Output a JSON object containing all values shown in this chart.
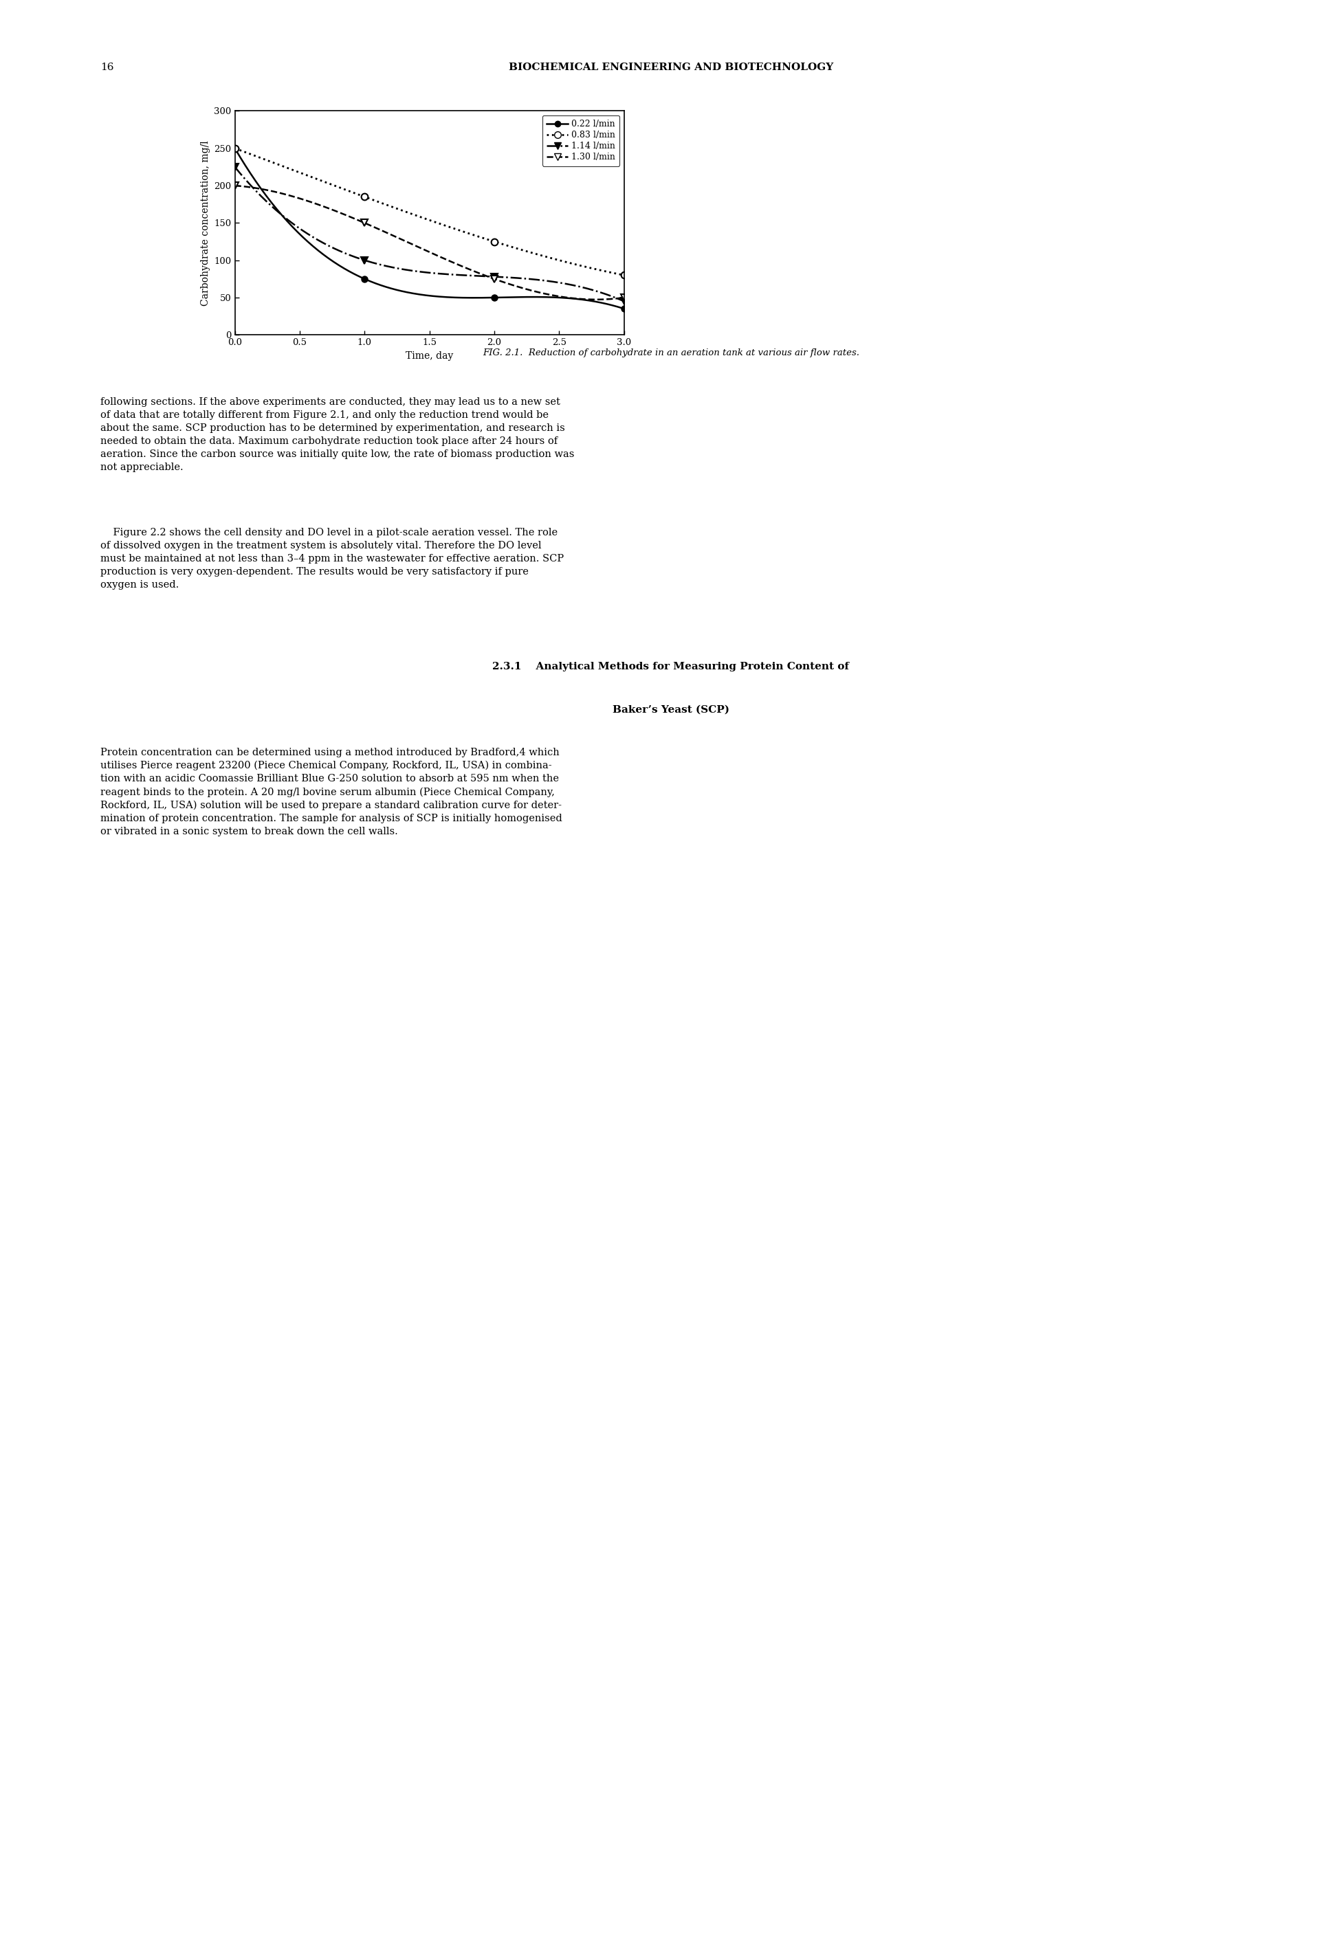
{
  "title_header": "BIOCHEMICAL ENGINEERING AND BIOTECHNOLOGY",
  "page_number": "16",
  "fig_caption": "FIG. 2.1.  Reduction of carbohydrate in an aeration tank at various air flow rates.",
  "xlabel": "Time, day",
  "ylabel": "Carbohydrate concentration, mg/l",
  "xlim": [
    0.0,
    3.0
  ],
  "ylim": [
    0,
    300
  ],
  "xticks": [
    0.0,
    0.5,
    1.0,
    1.5,
    2.0,
    2.5,
    3.0
  ],
  "yticks": [
    0,
    50,
    100,
    150,
    200,
    250,
    300
  ],
  "series": [
    {
      "label": "0.22 l/min",
      "x": [
        0.0,
        1.0,
        2.0,
        3.0
      ],
      "y": [
        250,
        75,
        50,
        35
      ],
      "color": "black",
      "linestyle": "-",
      "marker": "o",
      "markersize": 6,
      "linewidth": 1.8,
      "markerfacecolor": "black"
    },
    {
      "label": "0.83 l/min",
      "x": [
        0.0,
        1.0,
        2.0,
        3.0
      ],
      "y": [
        250,
        185,
        125,
        80
      ],
      "color": "black",
      "linestyle": ":",
      "marker": "o",
      "markersize": 7,
      "linewidth": 2.0,
      "markerfacecolor": "white"
    },
    {
      "label": "1.14 l/min",
      "x": [
        0.0,
        1.0,
        2.0,
        3.0
      ],
      "y": [
        225,
        100,
        78,
        45
      ],
      "color": "black",
      "linestyle": "-.",
      "marker": "v",
      "markersize": 7,
      "linewidth": 1.8,
      "markerfacecolor": "black"
    },
    {
      "label": "1.30 l/min",
      "x": [
        0.0,
        1.0,
        2.0,
        3.0
      ],
      "y": [
        200,
        150,
        75,
        50
      ],
      "color": "black",
      "linestyle": "--",
      "marker": "v",
      "markersize": 7,
      "linewidth": 1.8,
      "markerfacecolor": "white"
    }
  ],
  "background_color": "#ffffff",
  "para1": "following sections. If the above experiments are conducted, they may lead us to a new set\nof data that are totally different from Figure 2.1, and only the reduction trend would be\nabout the same. SCP production has to be determined by experimentation, and research is\nneeded to obtain the data. Maximum carbohydrate reduction took place after 24 hours of\naeration. Since the carbon source was initially quite low, the rate of biomass production was\nnot appreciable.",
  "para2": "    Figure 2.2 shows the cell density and DO level in a pilot-scale aeration vessel. The role\nof dissolved oxygen in the treatment system is absolutely vital. Therefore the DO level\nmust be maintained at not less than 3–4 ppm in the wastewater for effective aeration. SCP\nproduction is very oxygen-dependent. The results would be very satisfactory if pure\noxygen is used.",
  "section_title_line1": "2.3.1    Analytical Methods for Measuring Protein Content of",
  "section_title_line2": "Baker’s Yeast (SCP)",
  "para3": "Protein concentration can be determined using a method introduced by Bradford,4 which\nutilises Pierce reagent 23200 (Piece Chemical Company, Rockford, IL, USA) in combina-\ntion with an acidic Coomassie Brilliant Blue G-250 solution to absorb at 595 nm when the\nreagent binds to the protein. A 20 mg/l bovine serum albumin (Piece Chemical Company,\nRockford, IL, USA) solution will be used to prepare a standard calibration curve for deter-\nmination of protein concentration. The sample for analysis of SCP is initially homogenised\nor vibrated in a sonic system to break down the cell walls."
}
